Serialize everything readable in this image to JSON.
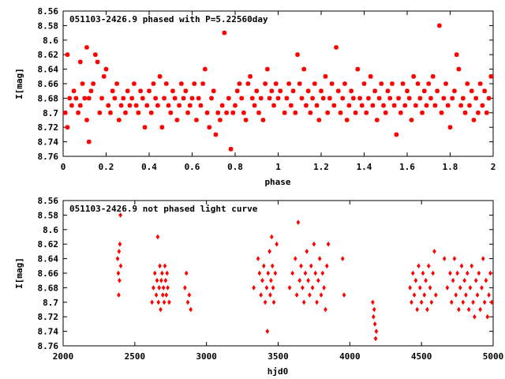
{
  "chart_data": [
    {
      "type": "scatter",
      "title": "051103-2426.9 phased with P=5.22560day",
      "xlabel": "phase",
      "ylabel": "I[mag]",
      "xlim": [
        0,
        2
      ],
      "ylim": [
        8.76,
        8.56
      ],
      "y_inverted": true,
      "x_ticks": [
        "0",
        "0.2",
        "0.4",
        "0.6",
        "0.8",
        "1",
        "1.2",
        "1.4",
        "1.6",
        "1.8",
        "2"
      ],
      "y_ticks": [
        "8.56",
        "8.58",
        "8.6",
        "8.62",
        "8.64",
        "8.66",
        "8.68",
        "8.7",
        "8.72",
        "8.74",
        "8.76"
      ],
      "color": "#ff0000",
      "marker": "star",
      "grid": false,
      "points": [
        [
          0.01,
          8.7
        ],
        [
          0.02,
          8.72
        ],
        [
          0.02,
          8.62
        ],
        [
          0.03,
          8.68
        ],
        [
          0.04,
          8.69
        ],
        [
          0.05,
          8.67
        ],
        [
          0.06,
          8.68
        ],
        [
          0.07,
          8.7
        ],
        [
          0.08,
          8.69
        ],
        [
          0.08,
          8.63
        ],
        [
          0.09,
          8.66
        ],
        [
          0.1,
          8.68
        ],
        [
          0.11,
          8.71
        ],
        [
          0.11,
          8.61
        ],
        [
          0.12,
          8.74
        ],
        [
          0.12,
          8.68
        ],
        [
          0.13,
          8.67
        ],
        [
          0.14,
          8.66
        ],
        [
          0.15,
          8.62
        ],
        [
          0.16,
          8.63
        ],
        [
          0.17,
          8.7
        ],
        [
          0.18,
          8.68
        ],
        [
          0.19,
          8.65
        ],
        [
          0.2,
          8.64
        ],
        [
          0.21,
          8.69
        ],
        [
          0.22,
          8.7
        ],
        [
          0.23,
          8.67
        ],
        [
          0.24,
          8.68
        ],
        [
          0.25,
          8.66
        ],
        [
          0.26,
          8.71
        ],
        [
          0.27,
          8.69
        ],
        [
          0.28,
          8.68
        ],
        [
          0.29,
          8.7
        ],
        [
          0.3,
          8.67
        ],
        [
          0.31,
          8.69
        ],
        [
          0.32,
          8.68
        ],
        [
          0.33,
          8.66
        ],
        [
          0.34,
          8.69
        ],
        [
          0.35,
          8.7
        ],
        [
          0.36,
          8.67
        ],
        [
          0.37,
          8.68
        ],
        [
          0.38,
          8.72
        ],
        [
          0.39,
          8.69
        ],
        [
          0.4,
          8.67
        ],
        [
          0.41,
          8.7
        ],
        [
          0.42,
          8.66
        ],
        [
          0.43,
          8.68
        ],
        [
          0.44,
          8.69
        ],
        [
          0.45,
          8.65
        ],
        [
          0.46,
          8.72
        ],
        [
          0.47,
          8.68
        ],
        [
          0.48,
          8.66
        ],
        [
          0.49,
          8.69
        ],
        [
          0.5,
          8.7
        ],
        [
          0.51,
          8.67
        ],
        [
          0.52,
          8.68
        ],
        [
          0.53,
          8.71
        ],
        [
          0.54,
          8.69
        ],
        [
          0.55,
          8.66
        ],
        [
          0.56,
          8.68
        ],
        [
          0.57,
          8.67
        ],
        [
          0.58,
          8.7
        ],
        [
          0.59,
          8.69
        ],
        [
          0.6,
          8.68
        ],
        [
          0.61,
          8.66
        ],
        [
          0.62,
          8.71
        ],
        [
          0.63,
          8.68
        ],
        [
          0.64,
          8.69
        ],
        [
          0.65,
          8.66
        ],
        [
          0.66,
          8.64
        ],
        [
          0.67,
          8.7
        ],
        [
          0.68,
          8.72
        ],
        [
          0.69,
          8.68
        ],
        [
          0.7,
          8.67
        ],
        [
          0.71,
          8.73
        ],
        [
          0.72,
          8.7
        ],
        [
          0.73,
          8.71
        ],
        [
          0.74,
          8.69
        ],
        [
          0.75,
          8.59
        ],
        [
          0.76,
          8.7
        ],
        [
          0.77,
          8.68
        ],
        [
          0.78,
          8.75
        ],
        [
          0.79,
          8.7
        ],
        [
          0.8,
          8.69
        ],
        [
          0.81,
          8.67
        ],
        [
          0.82,
          8.66
        ],
        [
          0.83,
          8.68
        ],
        [
          0.84,
          8.7
        ],
        [
          0.85,
          8.71
        ],
        [
          0.86,
          8.66
        ],
        [
          0.87,
          8.65
        ],
        [
          0.88,
          8.68
        ],
        [
          0.89,
          8.69
        ],
        [
          0.9,
          8.67
        ],
        [
          0.91,
          8.7
        ],
        [
          0.92,
          8.68
        ],
        [
          0.93,
          8.71
        ],
        [
          0.94,
          8.66
        ],
        [
          0.95,
          8.64
        ],
        [
          0.96,
          8.68
        ],
        [
          0.97,
          8.67
        ],
        [
          0.98,
          8.69
        ],
        [
          0.99,
          8.66
        ],
        [
          1.0,
          8.68
        ],
        [
          1.01,
          8.67
        ],
        [
          1.03,
          8.7
        ],
        [
          1.04,
          8.68
        ],
        [
          1.05,
          8.66
        ],
        [
          1.06,
          8.69
        ],
        [
          1.07,
          8.67
        ],
        [
          1.08,
          8.7
        ],
        [
          1.09,
          8.62
        ],
        [
          1.1,
          8.66
        ],
        [
          1.11,
          8.68
        ],
        [
          1.12,
          8.64
        ],
        [
          1.13,
          8.69
        ],
        [
          1.14,
          8.67
        ],
        [
          1.15,
          8.7
        ],
        [
          1.16,
          8.68
        ],
        [
          1.17,
          8.66
        ],
        [
          1.18,
          8.69
        ],
        [
          1.19,
          8.71
        ],
        [
          1.2,
          8.67
        ],
        [
          1.21,
          8.68
        ],
        [
          1.22,
          8.65
        ],
        [
          1.23,
          8.7
        ],
        [
          1.24,
          8.68
        ],
        [
          1.25,
          8.66
        ],
        [
          1.26,
          8.69
        ],
        [
          1.27,
          8.61
        ],
        [
          1.28,
          8.67
        ],
        [
          1.29,
          8.7
        ],
        [
          1.3,
          8.68
        ],
        [
          1.31,
          8.66
        ],
        [
          1.32,
          8.71
        ],
        [
          1.33,
          8.69
        ],
        [
          1.34,
          8.67
        ],
        [
          1.35,
          8.68
        ],
        [
          1.36,
          8.7
        ],
        [
          1.37,
          8.64
        ],
        [
          1.38,
          8.68
        ],
        [
          1.39,
          8.69
        ],
        [
          1.4,
          8.66
        ],
        [
          1.41,
          8.7
        ],
        [
          1.42,
          8.68
        ],
        [
          1.43,
          8.65
        ],
        [
          1.44,
          8.69
        ],
        [
          1.45,
          8.67
        ],
        [
          1.46,
          8.71
        ],
        [
          1.47,
          8.68
        ],
        [
          1.48,
          8.66
        ],
        [
          1.49,
          8.69
        ],
        [
          1.5,
          8.7
        ],
        [
          1.51,
          8.67
        ],
        [
          1.52,
          8.68
        ],
        [
          1.53,
          8.66
        ],
        [
          1.54,
          8.69
        ],
        [
          1.55,
          8.73
        ],
        [
          1.56,
          8.68
        ],
        [
          1.57,
          8.7
        ],
        [
          1.58,
          8.66
        ],
        [
          1.59,
          8.69
        ],
        [
          1.6,
          8.67
        ],
        [
          1.61,
          8.68
        ],
        [
          1.62,
          8.71
        ],
        [
          1.63,
          8.65
        ],
        [
          1.64,
          8.69
        ],
        [
          1.65,
          8.66
        ],
        [
          1.66,
          8.68
        ],
        [
          1.67,
          8.7
        ],
        [
          1.68,
          8.67
        ],
        [
          1.69,
          8.69
        ],
        [
          1.7,
          8.66
        ],
        [
          1.71,
          8.68
        ],
        [
          1.72,
          8.65
        ],
        [
          1.73,
          8.69
        ],
        [
          1.74,
          8.67
        ],
        [
          1.75,
          8.58
        ],
        [
          1.76,
          8.7
        ],
        [
          1.77,
          8.68
        ],
        [
          1.78,
          8.66
        ],
        [
          1.79,
          8.69
        ],
        [
          1.8,
          8.72
        ],
        [
          1.81,
          8.68
        ],
        [
          1.82,
          8.67
        ],
        [
          1.83,
          8.62
        ],
        [
          1.84,
          8.64
        ],
        [
          1.85,
          8.69
        ],
        [
          1.86,
          8.68
        ],
        [
          1.87,
          8.7
        ],
        [
          1.88,
          8.66
        ],
        [
          1.89,
          8.69
        ],
        [
          1.9,
          8.67
        ],
        [
          1.91,
          8.71
        ],
        [
          1.92,
          8.68
        ],
        [
          1.93,
          8.7
        ],
        [
          1.94,
          8.66
        ],
        [
          1.95,
          8.69
        ],
        [
          1.96,
          8.67
        ],
        [
          1.97,
          8.7
        ],
        [
          1.98,
          8.68
        ],
        [
          1.99,
          8.65
        ]
      ]
    },
    {
      "type": "scatter",
      "title": "051103-2426.9 not phased light curve",
      "xlabel": "hjd0",
      "ylabel": "I[mag]",
      "xlim": [
        2000,
        5000
      ],
      "ylim": [
        8.76,
        8.56
      ],
      "y_inverted": true,
      "x_ticks": [
        "2000",
        "2500",
        "3000",
        "3500",
        "4000",
        "4500",
        "5000"
      ],
      "y_ticks": [
        "8.56",
        "8.58",
        "8.6",
        "8.62",
        "8.64",
        "8.66",
        "8.68",
        "8.7",
        "8.72",
        "8.74",
        "8.76"
      ],
      "color": "#ff0000",
      "marker": "diamond",
      "grid": false,
      "points": [
        [
          2380,
          8.64
        ],
        [
          2385,
          8.66
        ],
        [
          2388,
          8.69
        ],
        [
          2390,
          8.63
        ],
        [
          2393,
          8.67
        ],
        [
          2396,
          8.62
        ],
        [
          2400,
          8.58
        ],
        [
          2402,
          8.65
        ],
        [
          2620,
          8.7
        ],
        [
          2630,
          8.68
        ],
        [
          2640,
          8.66
        ],
        [
          2650,
          8.69
        ],
        [
          2655,
          8.67
        ],
        [
          2660,
          8.61
        ],
        [
          2665,
          8.7
        ],
        [
          2670,
          8.68
        ],
        [
          2675,
          8.65
        ],
        [
          2680,
          8.71
        ],
        [
          2685,
          8.67
        ],
        [
          2690,
          8.66
        ],
        [
          2695,
          8.69
        ],
        [
          2700,
          8.68
        ],
        [
          2705,
          8.7
        ],
        [
          2710,
          8.65
        ],
        [
          2715,
          8.67
        ],
        [
          2720,
          8.69
        ],
        [
          2725,
          8.66
        ],
        [
          2730,
          8.68
        ],
        [
          2740,
          8.7
        ],
        [
          2850,
          8.68
        ],
        [
          2860,
          8.66
        ],
        [
          2870,
          8.7
        ],
        [
          2880,
          8.69
        ],
        [
          2890,
          8.71
        ],
        [
          3330,
          8.68
        ],
        [
          3360,
          8.64
        ],
        [
          3370,
          8.66
        ],
        [
          3380,
          8.69
        ],
        [
          3390,
          8.67
        ],
        [
          3400,
          8.65
        ],
        [
          3410,
          8.7
        ],
        [
          3420,
          8.68
        ],
        [
          3425,
          8.74
        ],
        [
          3430,
          8.66
        ],
        [
          3440,
          8.63
        ],
        [
          3445,
          8.69
        ],
        [
          3450,
          8.67
        ],
        [
          3455,
          8.61
        ],
        [
          3460,
          8.65
        ],
        [
          3465,
          8.68
        ],
        [
          3470,
          8.7
        ],
        [
          3480,
          8.66
        ],
        [
          3490,
          8.62
        ],
        [
          3580,
          8.68
        ],
        [
          3600,
          8.66
        ],
        [
          3620,
          8.64
        ],
        [
          3630,
          8.69
        ],
        [
          3640,
          8.59
        ],
        [
          3650,
          8.67
        ],
        [
          3660,
          8.65
        ],
        [
          3670,
          8.68
        ],
        [
          3680,
          8.7
        ],
        [
          3690,
          8.66
        ],
        [
          3700,
          8.63
        ],
        [
          3710,
          8.67
        ],
        [
          3720,
          8.69
        ],
        [
          3730,
          8.65
        ],
        [
          3740,
          8.68
        ],
        [
          3750,
          8.62
        ],
        [
          3760,
          8.66
        ],
        [
          3770,
          8.7
        ],
        [
          3780,
          8.67
        ],
        [
          3790,
          8.64
        ],
        [
          3800,
          8.69
        ],
        [
          3810,
          8.66
        ],
        [
          3820,
          8.68
        ],
        [
          3830,
          8.71
        ],
        [
          3840,
          8.65
        ],
        [
          3850,
          8.62
        ],
        [
          3950,
          8.64
        ],
        [
          3960,
          8.69
        ],
        [
          4160,
          8.7
        ],
        [
          4165,
          8.72
        ],
        [
          4170,
          8.71
        ],
        [
          4175,
          8.73
        ],
        [
          4180,
          8.75
        ],
        [
          4185,
          8.74
        ],
        [
          4420,
          8.68
        ],
        [
          4430,
          8.7
        ],
        [
          4440,
          8.66
        ],
        [
          4450,
          8.69
        ],
        [
          4460,
          8.67
        ],
        [
          4470,
          8.71
        ],
        [
          4480,
          8.65
        ],
        [
          4490,
          8.68
        ],
        [
          4500,
          8.7
        ],
        [
          4510,
          8.66
        ],
        [
          4520,
          8.69
        ],
        [
          4530,
          8.67
        ],
        [
          4540,
          8.71
        ],
        [
          4550,
          8.65
        ],
        [
          4560,
          8.68
        ],
        [
          4570,
          8.7
        ],
        [
          4580,
          8.66
        ],
        [
          4590,
          8.63
        ],
        [
          4600,
          8.69
        ],
        [
          4660,
          8.64
        ],
        [
          4680,
          8.68
        ],
        [
          4700,
          8.66
        ],
        [
          4710,
          8.7
        ],
        [
          4720,
          8.67
        ],
        [
          4730,
          8.64
        ],
        [
          4740,
          8.69
        ],
        [
          4750,
          8.66
        ],
        [
          4760,
          8.71
        ],
        [
          4770,
          8.68
        ],
        [
          4780,
          8.65
        ],
        [
          4790,
          8.7
        ],
        [
          4800,
          8.67
        ],
        [
          4810,
          8.69
        ],
        [
          4820,
          8.66
        ],
        [
          4830,
          8.71
        ],
        [
          4840,
          8.68
        ],
        [
          4850,
          8.65
        ],
        [
          4860,
          8.7
        ],
        [
          4870,
          8.72
        ],
        [
          4880,
          8.67
        ],
        [
          4890,
          8.69
        ],
        [
          4900,
          8.66
        ],
        [
          4910,
          8.71
        ],
        [
          4920,
          8.68
        ],
        [
          4930,
          8.64
        ],
        [
          4940,
          8.7
        ],
        [
          4950,
          8.67
        ],
        [
          4960,
          8.72
        ],
        [
          4970,
          8.69
        ],
        [
          4980,
          8.66
        ],
        [
          4990,
          8.7
        ]
      ]
    }
  ]
}
